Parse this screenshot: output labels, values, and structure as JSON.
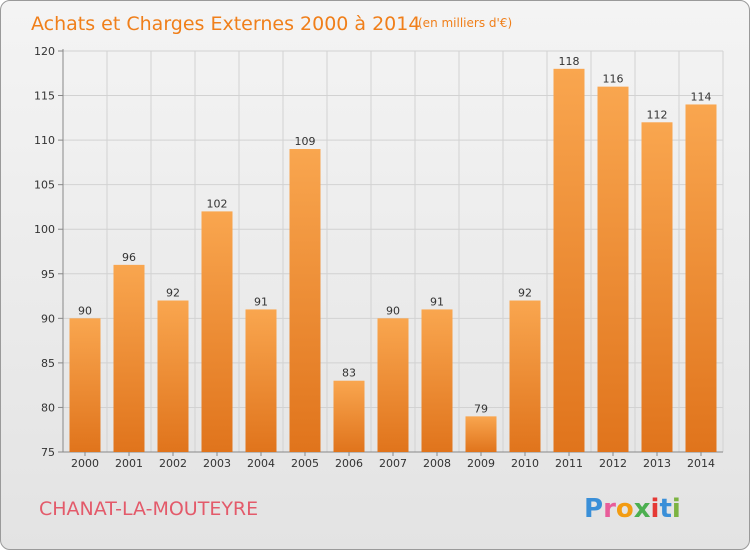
{
  "chart_data": {
    "type": "bar",
    "title": "Achats et Charges Externes 2000 à 2014",
    "subtitle": "(en milliers d'€)",
    "categories": [
      "2000",
      "2001",
      "2002",
      "2003",
      "2004",
      "2005",
      "2006",
      "2007",
      "2008",
      "2009",
      "2010",
      "2011",
      "2012",
      "2013",
      "2014"
    ],
    "values": [
      90,
      96,
      92,
      102,
      91,
      109,
      83,
      90,
      91,
      79,
      92,
      118,
      116,
      112,
      114
    ],
    "ylim": [
      75,
      120
    ],
    "yticks": [
      75,
      80,
      85,
      90,
      95,
      100,
      105,
      110,
      115,
      120
    ],
    "grid": true,
    "bar_color": "#f08a24"
  },
  "footer": {
    "commune": "CHANAT-LA-MOUTEYRE",
    "logo": "Proxiti"
  }
}
